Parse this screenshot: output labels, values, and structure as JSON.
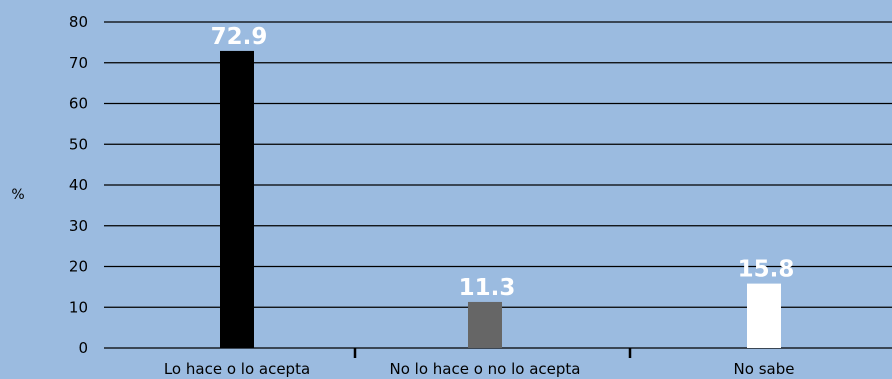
{
  "chart_data": {
    "type": "bar",
    "categories": [
      "Lo hace o lo acepta",
      "No lo hace o no lo acepta",
      "No sabe"
    ],
    "values": [
      72.9,
      11.3,
      15.8
    ],
    "value_labels": [
      "72.9",
      "11.3",
      "15.8"
    ],
    "bar_colors": [
      "#000000",
      "#666666",
      "#ffffff"
    ],
    "title": "",
    "xlabel": "",
    "ylabel": "%",
    "ylim": [
      0,
      80
    ],
    "yticks": [
      "0",
      "10",
      "20",
      "30",
      "40",
      "50",
      "60",
      "70",
      "80"
    ],
    "grid": true,
    "legend": "none"
  },
  "colors": {
    "background": "#9bbbe0",
    "gridline": "#000000",
    "data_label": "#ffffff"
  }
}
